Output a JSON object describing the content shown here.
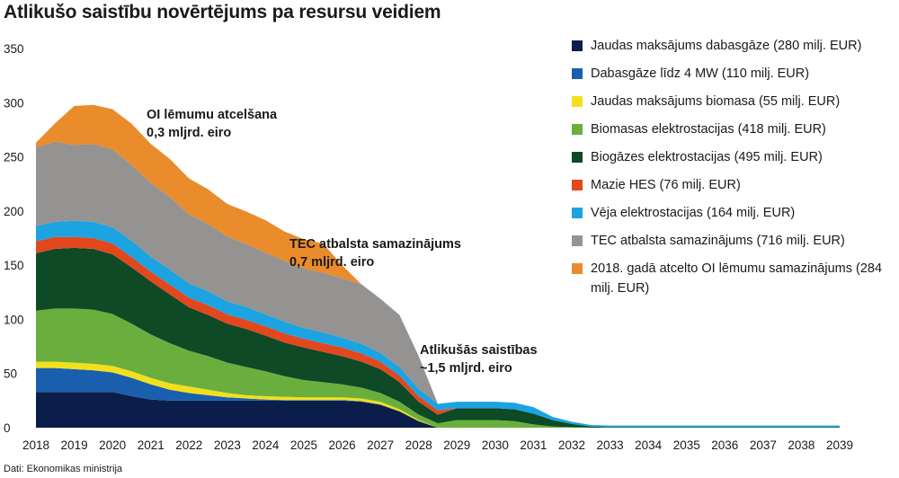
{
  "title": "Atlikušo saistību novērtējums pa resursu veidiem",
  "source": "Dati: Ekonomikas ministrija",
  "chart_data": {
    "type": "area",
    "stacked": true,
    "ylim": [
      0,
      350
    ],
    "yticks": [
      0,
      50,
      100,
      150,
      200,
      250,
      300,
      350
    ],
    "xticks": [
      "2018",
      "2019",
      "2020",
      "2021",
      "2022",
      "2023",
      "2024",
      "2025",
      "2026",
      "2027",
      "2028",
      "2029",
      "2030",
      "2031",
      "2032",
      "2033",
      "2034",
      "2035",
      "2036",
      "2037",
      "2038",
      "2039"
    ],
    "x": [
      2018,
      2018.5,
      2019,
      2019.5,
      2020,
      2020.5,
      2021,
      2021.5,
      2022,
      2022.5,
      2023,
      2023.5,
      2024,
      2024.5,
      2025,
      2025.5,
      2026,
      2026.5,
      2027,
      2027.5,
      2028,
      2028.5,
      2029,
      2029.5,
      2030,
      2030.5,
      2031,
      2031.5,
      2032,
      2032.5,
      2033,
      2034,
      2035,
      2036,
      2037,
      2038,
      2039
    ],
    "grid": false,
    "legend_position": "right",
    "series": [
      {
        "name": "Jaudas maksājums dabasgāze (280 milj. EUR)",
        "color": "#0b1e4b",
        "values": [
          33,
          33,
          33,
          33,
          33,
          29,
          26,
          25,
          25,
          25,
          25,
          25,
          25,
          25,
          25,
          25,
          25,
          24,
          21,
          15,
          6,
          0,
          0,
          0,
          0,
          0,
          0,
          0,
          0,
          0,
          0,
          0,
          0,
          0,
          0,
          0,
          0
        ]
      },
      {
        "name": "Dabasgāze līdz 4 MW (110 milj. EUR)",
        "color": "#1a5fae",
        "values": [
          22,
          22,
          21,
          20,
          18,
          17,
          14,
          10,
          7,
          5,
          3,
          2,
          1,
          0.5,
          0.5,
          0.5,
          0.5,
          0.5,
          0.5,
          0,
          0,
          0,
          0,
          0,
          0,
          0,
          0,
          0,
          0,
          0,
          0,
          0,
          0,
          0,
          0,
          0,
          0
        ]
      },
      {
        "name": "Jaudas maksājums biomasa (55 milj. EUR)",
        "color": "#f2e01c",
        "values": [
          6,
          6,
          6,
          6,
          6,
          6,
          6,
          6,
          6,
          5,
          4,
          3,
          3,
          3,
          2.5,
          2.5,
          2.5,
          2.5,
          2.5,
          2,
          1,
          0,
          0,
          0,
          0,
          0,
          0,
          0,
          0,
          0,
          0,
          0,
          0,
          0,
          0,
          0,
          0
        ]
      },
      {
        "name": "Biomasas elektrostacijas (418 milj. EUR)",
        "color": "#6aae3e",
        "values": [
          47,
          49,
          50,
          50,
          48,
          44,
          40,
          37,
          33,
          31,
          28,
          26,
          23,
          19,
          16,
          14,
          12,
          10,
          8,
          7,
          5,
          4,
          7,
          7,
          7,
          6,
          3,
          1,
          0.5,
          0,
          0,
          0,
          0,
          0,
          0,
          0,
          0
        ]
      },
      {
        "name": "Biogāzes elektrostacijas (495 milj. EUR)",
        "color": "#0e4a26",
        "values": [
          53,
          55,
          56,
          56,
          55,
          52,
          49,
          45,
          40,
          38,
          36,
          35,
          33,
          31,
          30,
          28,
          26,
          24,
          22,
          18,
          12,
          8,
          11,
          11,
          11,
          11,
          10,
          6,
          3,
          1,
          0.5,
          0.5,
          0.5,
          0.5,
          0.5,
          0.5,
          0.5
        ]
      },
      {
        "name": "Mazie HES (76 milj. EUR)",
        "color": "#e2471e",
        "values": [
          11,
          11,
          10,
          10,
          10,
          9.5,
          9,
          9,
          9,
          9,
          8.5,
          8.5,
          8.5,
          8.5,
          8,
          8,
          8,
          7.5,
          7,
          6,
          5,
          4,
          0,
          0,
          0,
          0,
          0,
          0,
          0,
          0,
          0,
          0,
          0,
          0,
          0,
          0,
          0
        ]
      },
      {
        "name": "Vēja elektrostacijas (164 milj. EUR)",
        "color": "#1ba3e2",
        "values": [
          14,
          14,
          15,
          15,
          15,
          15,
          14,
          14,
          13,
          13,
          12,
          12,
          11,
          11,
          10,
          10,
          9,
          9,
          8,
          8,
          7,
          6,
          6,
          6,
          6,
          6,
          6,
          3,
          2,
          1.5,
          1.5,
          1.5,
          1.5,
          1.5,
          1.5,
          1.5,
          1.5
        ]
      },
      {
        "name": "TEC atbalsta samazinājums (716 milj. EUR)",
        "color": "#949391",
        "values": [
          73,
          74,
          70,
          72,
          72,
          70,
          68,
          67,
          64,
          62,
          60,
          58,
          57,
          56,
          55,
          55,
          55,
          55,
          50,
          48,
          30,
          0,
          0,
          0,
          0,
          0,
          0,
          0,
          0,
          0,
          0,
          0,
          0,
          0,
          0,
          0,
          0
        ]
      },
      {
        "name": "2018. gadā atcelto OI lēmumu samazinājums (284 milj. EUR)",
        "color": "#ea8c2c",
        "values": [
          4,
          17,
          36,
          36,
          37,
          38,
          36,
          35,
          33,
          32,
          30,
          30,
          30,
          27,
          27,
          27,
          12,
          0,
          0,
          0,
          0,
          0,
          0,
          0,
          0,
          0,
          0,
          0,
          0,
          0,
          0,
          0,
          0,
          0,
          0,
          0,
          0
        ]
      }
    ],
    "annotations": [
      {
        "lines": [
          "OI lēmumu atcelšana",
          "0,3 mljrd. eiro"
        ]
      },
      {
        "lines": [
          "TEC atbalsta samazinājums",
          "0,7 mljrd. eiro"
        ]
      },
      {
        "lines": [
          "Atlikušās saistības",
          "~1,5 mljrd. eiro"
        ]
      }
    ]
  },
  "legend": [
    {
      "label": "Jaudas maksājums dabasgāze (280 milj. EUR)",
      "color": "#0b1e4b"
    },
    {
      "label": "Dabasgāze līdz 4 MW (110 milj. EUR)",
      "color": "#1a5fae"
    },
    {
      "label": "Jaudas maksājums biomasa (55 milj. EUR)",
      "color": "#f2e01c"
    },
    {
      "label": "Biomasas elektrostacijas (418 milj. EUR)",
      "color": "#6aae3e"
    },
    {
      "label": "Biogāzes elektrostacijas (495 milj. EUR)",
      "color": "#0e4a26"
    },
    {
      "label": "Mazie HES (76 milj. EUR)",
      "color": "#e2471e"
    },
    {
      "label": "Vēja elektrostacijas (164 milj. EUR)",
      "color": "#1ba3e2"
    },
    {
      "label": "TEC atbalsta samazinājums (716 milj. EUR)",
      "color": "#949391"
    },
    {
      "label": "2018. gadā atcelto OI lēmumu samazinājums (284 milj. EUR)",
      "color": "#ea8c2c"
    }
  ]
}
